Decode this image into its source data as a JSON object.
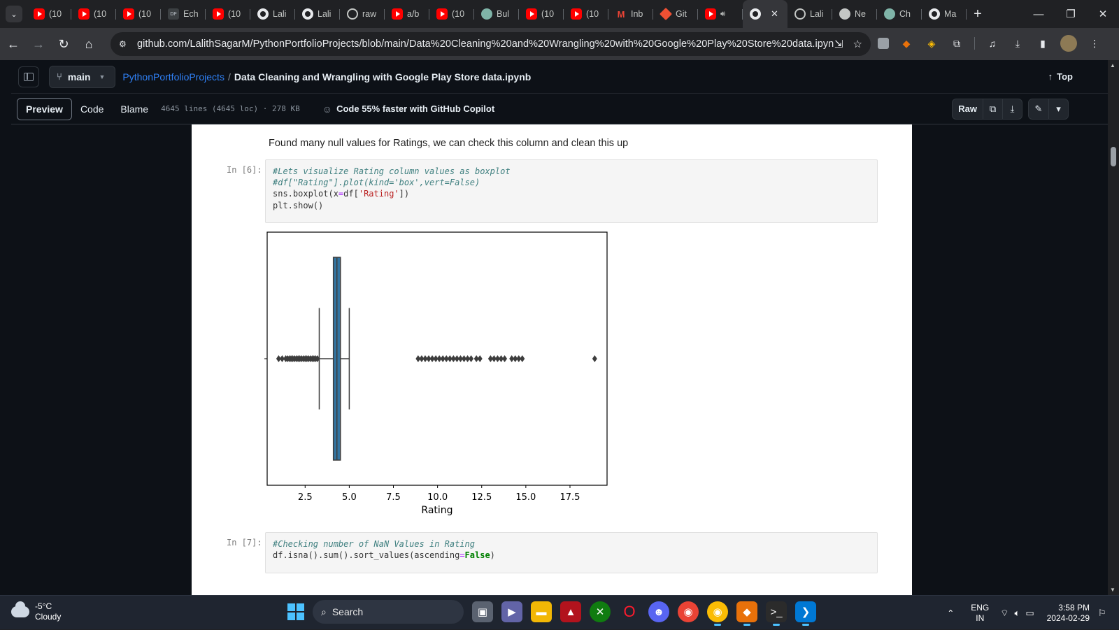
{
  "browser": {
    "tabs": [
      {
        "label": "(10",
        "icon": "yt"
      },
      {
        "label": "(10",
        "icon": "yt"
      },
      {
        "label": "(10",
        "icon": "yt"
      },
      {
        "label": "Ech",
        "icon": "df"
      },
      {
        "label": "(10",
        "icon": "yt"
      },
      {
        "label": "Lali",
        "icon": "gh"
      },
      {
        "label": "Lali",
        "icon": "gh"
      },
      {
        "label": "raw",
        "icon": "globe"
      },
      {
        "label": "a/b",
        "icon": "yt"
      },
      {
        "label": "(10",
        "icon": "yt"
      },
      {
        "label": "Bul",
        "icon": "gpt"
      },
      {
        "label": "(10",
        "icon": "yt"
      },
      {
        "label": "(10",
        "icon": "yt"
      },
      {
        "label": "Inb",
        "icon": "gm"
      },
      {
        "label": "Git",
        "icon": "git"
      },
      {
        "label": "",
        "icon": "yt"
      },
      {
        "label": "",
        "icon": "gh",
        "active": true
      },
      {
        "label": "Lali",
        "icon": "globe"
      },
      {
        "label": "Ne",
        "icon": "net"
      },
      {
        "label": "Ch",
        "icon": "gpt"
      },
      {
        "label": "Ma",
        "icon": "gh"
      }
    ],
    "url": "github.com/LalithSagarM/PythonPortfolioProjects/blob/main/Data%20Cleaning%20and%20Wrangling%20with%20Google%20Play%20Store%20data.ipynb"
  },
  "github": {
    "branch": "main",
    "repo": "PythonPortfolioProjects",
    "separator": "/",
    "file": "Data Cleaning and Wrangling with Google Play Store data.ipynb",
    "top_label": "Top",
    "view_tabs": [
      "Preview",
      "Code",
      "Blame"
    ],
    "file_meta": "4645 lines (4645 loc) · 278 KB",
    "copilot": "Code 55% faster with GitHub Copilot",
    "raw_label": "Raw"
  },
  "notebook": {
    "markdown": "Found many null values for Ratings, we can check this column and clean this up",
    "cell6_prompt": "In [6]:",
    "cell7_prompt": "In [7]:"
  },
  "chart_data": {
    "type": "boxplot",
    "xlabel": "Rating",
    "xlim": [
      0.35,
      19.6
    ],
    "xticks": [
      2.5,
      5.0,
      7.5,
      10.0,
      12.5,
      15.0,
      17.5
    ],
    "box": {
      "whisker_low": 3.3,
      "q1": 4.1,
      "median": 4.3,
      "q3": 4.5,
      "whisker_high": 5.0
    },
    "outliers": [
      1.0,
      1.2,
      1.4,
      1.5,
      1.6,
      1.7,
      1.8,
      1.9,
      2.0,
      2.1,
      2.2,
      2.3,
      2.4,
      2.5,
      2.6,
      2.7,
      2.8,
      2.9,
      3.0,
      3.1,
      3.2,
      8.9,
      9.1,
      9.3,
      9.5,
      9.7,
      9.9,
      10.1,
      10.3,
      10.5,
      10.7,
      10.9,
      11.1,
      11.3,
      11.5,
      11.7,
      11.9,
      12.2,
      12.4,
      13.0,
      13.2,
      13.4,
      13.6,
      13.8,
      14.2,
      14.4,
      14.6,
      14.8,
      18.9
    ],
    "color": "#3274a1"
  },
  "taskbar": {
    "temp": "-5°C",
    "weather": "Cloudy",
    "search": "Search",
    "lang1": "ENG",
    "lang2": "IN",
    "time": "3:58 PM",
    "date": "2024-02-29"
  }
}
